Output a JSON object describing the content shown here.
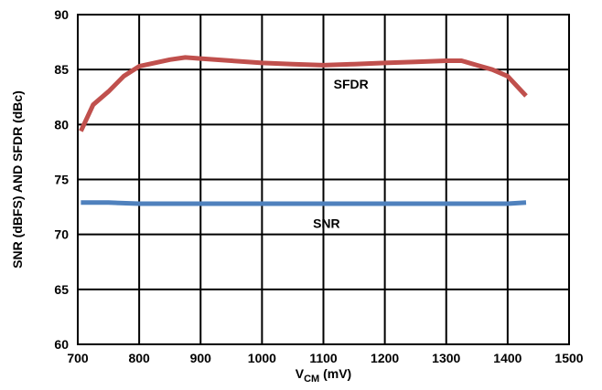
{
  "chart_data": {
    "type": "line",
    "xlim": [
      700,
      1500
    ],
    "ylim": [
      60,
      90
    ],
    "x_ticks": [
      700,
      800,
      900,
      1000,
      1100,
      1200,
      1300,
      1400,
      1500
    ],
    "y_ticks": [
      60,
      65,
      70,
      75,
      80,
      85,
      90
    ],
    "grid": true,
    "legend": "none",
    "xlabel": {
      "main": "V",
      "sub": "CM",
      "rest": " (mV)"
    },
    "ylabel": "SNR (dBFS) AND SFDR (dBc)",
    "series": [
      {
        "name": "SFDR",
        "color": "#c0504d",
        "x": [
          705,
          725,
          750,
          775,
          800,
          825,
          850,
          875,
          900,
          950,
          1000,
          1050,
          1100,
          1150,
          1200,
          1250,
          1300,
          1325,
          1350,
          1375,
          1400,
          1430
        ],
        "y": [
          79.4,
          81.8,
          83.0,
          84.4,
          85.3,
          85.6,
          85.9,
          86.1,
          86.0,
          85.8,
          85.6,
          85.5,
          85.4,
          85.5,
          85.6,
          85.7,
          85.8,
          85.8,
          85.4,
          85.0,
          84.4,
          82.6
        ]
      },
      {
        "name": "SNR",
        "color": "#4f81bd",
        "x": [
          705,
          750,
          800,
          900,
          1000,
          1100,
          1200,
          1300,
          1400,
          1430
        ],
        "y": [
          72.9,
          72.9,
          72.8,
          72.8,
          72.8,
          72.8,
          72.8,
          72.8,
          72.8,
          72.9
        ]
      }
    ],
    "annotations": [
      {
        "text": "SFDR",
        "x": 1145,
        "y": 83.7
      },
      {
        "text": "SNR",
        "x": 1105,
        "y": 71.0
      }
    ]
  }
}
